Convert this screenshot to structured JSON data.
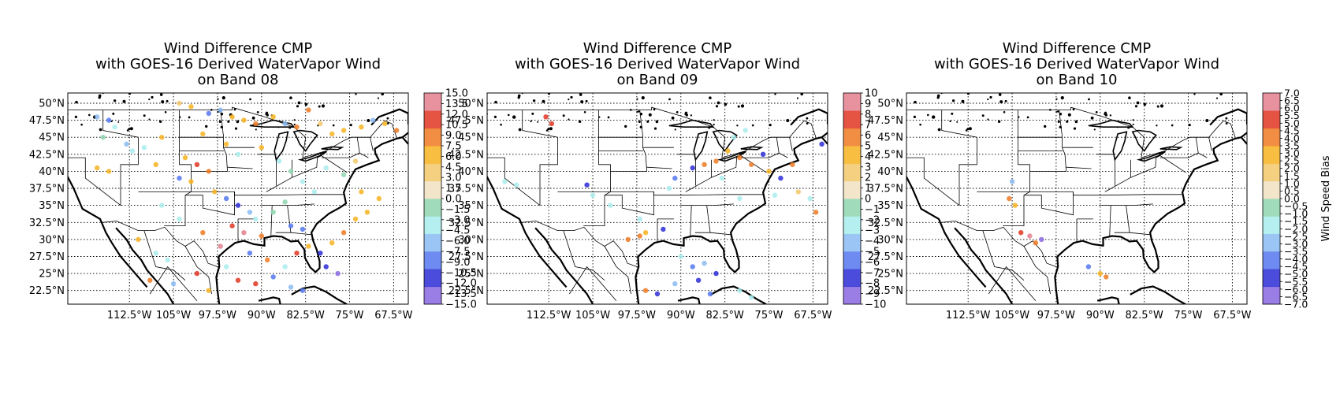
{
  "panels": [
    {
      "title_lines": [
        "Wind Difference CMP",
        "with GOES-16 Derived WaterVapor Wind",
        "on Band 08"
      ],
      "colorbar_ticks": [
        "15.0",
        "13.5",
        "12.0",
        "10.5",
        "9.0",
        "7.5",
        "6.0",
        "4.5",
        "3.0",
        "1.5",
        "0.0",
        "−1.5",
        "−3.0",
        "−4.5",
        "−6.0",
        "−7.5",
        "−9.0",
        "−10.5",
        "−12.0",
        "−13.5",
        "−15.0"
      ],
      "colorbar_range": [
        -15,
        15
      ],
      "colorbar_label": ""
    },
    {
      "title_lines": [
        "Wind Difference CMP",
        "with GOES-16 Derived WaterVapor Wind",
        "on Band 09"
      ],
      "colorbar_ticks": [
        "10",
        "9",
        "8",
        "7",
        "6",
        "5",
        "4",
        "3",
        "2",
        "1",
        "0",
        "−1",
        "−2",
        "−3",
        "−4",
        "−5",
        "−6",
        "−7",
        "−8",
        "−9",
        "−10"
      ],
      "colorbar_range": [
        -10,
        10
      ],
      "colorbar_label": ""
    },
    {
      "title_lines": [
        "Wind Difference CMP",
        "with GOES-16 Derived WaterVapor Wind",
        "on Band 10"
      ],
      "colorbar_ticks": [
        "7.0",
        "6.5",
        "6.0",
        "5.5",
        "5.0",
        "4.5",
        "4.0",
        "3.5",
        "3.0",
        "2.5",
        "2.0",
        "1.5",
        "1.0",
        "0.5",
        "0.0",
        "−0.5",
        "−1.0",
        "−1.5",
        "−2.0",
        "−2.5",
        "−3.0",
        "−3.5",
        "−4.0",
        "−4.5",
        "−5.0",
        "−5.5",
        "−6.0",
        "−6.5",
        "−7.0"
      ],
      "colorbar_range": [
        -7,
        7
      ],
      "colorbar_label": "Wind Speed Bias"
    }
  ],
  "lat_ticks": [
    "50°N",
    "47.5°N",
    "45°N",
    "42.5°N",
    "40°N",
    "37.5°N",
    "35°N",
    "32.5°N",
    "30°N",
    "27.5°N",
    "25°N",
    "22.5°N"
  ],
  "lat_values": [
    50,
    47.5,
    45,
    42.5,
    40,
    37.5,
    35,
    32.5,
    30,
    27.5,
    25,
    22.5
  ],
  "lon_ticks": [
    "112.5°W",
    "105°W",
    "97.5°W",
    "90°W",
    "82.5°W",
    "75°W",
    "67.5°W"
  ],
  "lon_values": [
    -112.5,
    -105,
    -97.5,
    -90,
    -82.5,
    -75,
    -67.5
  ],
  "map_extent": {
    "lon": [
      -123,
      -65
    ],
    "lat": [
      20.5,
      51.5
    ]
  },
  "colormap": [
    "#8866e0",
    "#2c2cd6",
    "#5577ee",
    "#88bbf2",
    "#a8ecec",
    "#8fd6b0",
    "#f0e0c0",
    "#f2c86a",
    "#f7b320",
    "#ee7a22",
    "#e03622",
    "#e57f8e"
  ],
  "chart_data": [
    {
      "type": "scatter",
      "title": "Wind Difference CMP with GOES-16 Derived WaterVapor Wind on Band 08",
      "xlabel": "",
      "ylabel": "",
      "xlim": [
        -123,
        -65
      ],
      "ylim": [
        20.5,
        51.5
      ],
      "color_range": [
        -15,
        15
      ],
      "points": [
        [
          -118,
          48,
          -7
        ],
        [
          -116,
          47.5,
          -9
        ],
        [
          -115,
          46.5,
          -4
        ],
        [
          -117,
          45,
          -2
        ],
        [
          -113,
          44,
          -6
        ],
        [
          -112,
          43,
          -3
        ],
        [
          -118,
          40.5,
          5
        ],
        [
          -116,
          40,
          6
        ],
        [
          -104,
          50,
          4
        ],
        [
          -102,
          49.5,
          6
        ],
        [
          -99,
          48.5,
          -8
        ],
        [
          -97,
          49,
          -6
        ],
        [
          -95,
          48,
          5
        ],
        [
          -93,
          47.5,
          7
        ],
        [
          -91,
          47,
          8
        ],
        [
          -88,
          48,
          6
        ],
        [
          -86,
          47,
          -7
        ],
        [
          -84,
          46.5,
          9
        ],
        [
          -82,
          49,
          8
        ],
        [
          -80,
          47,
          4
        ],
        [
          -78,
          45.5,
          7
        ],
        [
          -76,
          46,
          6
        ],
        [
          -73,
          46.5,
          5
        ],
        [
          -71,
          47.5,
          -6
        ],
        [
          -69,
          47,
          7
        ],
        [
          -67,
          46,
          9
        ],
        [
          -103,
          42,
          6
        ],
        [
          -101,
          41,
          12
        ],
        [
          -99,
          40,
          8
        ],
        [
          -102,
          38.5,
          7
        ],
        [
          -98,
          37,
          5
        ],
        [
          -96,
          36,
          -9
        ],
        [
          -94,
          35,
          -12
        ],
        [
          -92,
          34,
          -6
        ],
        [
          -95,
          32,
          11
        ],
        [
          -93,
          31,
          13
        ],
        [
          -90,
          30.5,
          8
        ],
        [
          -91,
          33,
          -3
        ],
        [
          -88,
          34,
          -2
        ],
        [
          -86,
          35.5,
          -2
        ],
        [
          -85,
          32,
          -8
        ],
        [
          -83,
          31.5,
          -10
        ],
        [
          -82,
          29,
          6
        ],
        [
          -80,
          28,
          -11
        ],
        [
          -79,
          26,
          -12
        ],
        [
          -77,
          25,
          -13
        ],
        [
          -78,
          29.5,
          7
        ],
        [
          -76,
          31,
          8
        ],
        [
          -74,
          33,
          5
        ],
        [
          -72,
          34,
          6
        ],
        [
          -70,
          36,
          5
        ],
        [
          -73,
          37,
          7
        ],
        [
          -111,
          30,
          6
        ],
        [
          -108,
          28,
          -5
        ],
        [
          -106,
          27,
          -3
        ],
        [
          -109,
          24,
          8
        ],
        [
          -105,
          23.5,
          -7
        ],
        [
          -101,
          25,
          11
        ],
        [
          -99,
          22.5,
          6
        ],
        [
          -96,
          26,
          -4
        ],
        [
          -94,
          24,
          10
        ],
        [
          -91,
          23.5,
          12
        ],
        [
          -88,
          24.5,
          -8
        ],
        [
          -85,
          23,
          -6
        ],
        [
          -83,
          22.5,
          -9
        ],
        [
          -89,
          27,
          9
        ],
        [
          -86,
          26,
          -3
        ],
        [
          -84,
          28,
          11
        ],
        [
          -92,
          28,
          -9
        ],
        [
          -97,
          29,
          13
        ],
        [
          -100,
          31,
          9
        ],
        [
          -104,
          33,
          -4
        ],
        [
          -107,
          35,
          -5
        ],
        [
          -104,
          39,
          -8
        ],
        [
          -108,
          41,
          5
        ],
        [
          -110,
          43.5,
          -4
        ],
        [
          -107,
          45,
          6
        ],
        [
          -100,
          45.5,
          7
        ],
        [
          -96,
          44,
          5
        ],
        [
          -94,
          42.5,
          -3
        ],
        [
          -90,
          43.5,
          6
        ],
        [
          -87,
          41.5,
          -3
        ],
        [
          -85,
          40,
          -2
        ],
        [
          -83,
          38.5,
          -3
        ],
        [
          -81,
          37,
          -4
        ],
        [
          -79,
          40.5,
          -3
        ],
        [
          -76,
          39.5,
          -2
        ],
        [
          -74,
          41.5,
          4
        ]
      ]
    },
    {
      "type": "scatter",
      "title": "Wind Difference CMP with GOES-16 Derived WaterVapor Wind on Band 09",
      "xlabel": "",
      "ylabel": "",
      "xlim": [
        -123,
        -65
      ],
      "ylim": [
        20.5,
        51.5
      ],
      "color_range": [
        -10,
        10
      ],
      "points": [
        [
          -113,
          48,
          8
        ],
        [
          -112,
          47,
          7
        ],
        [
          -120,
          38.5,
          -2
        ],
        [
          -118,
          38,
          -2
        ],
        [
          -106,
          38,
          -8
        ],
        [
          -105,
          36.5,
          -3
        ],
        [
          -102,
          35,
          -2
        ],
        [
          -97,
          33,
          -3
        ],
        [
          -99,
          30,
          5
        ],
        [
          -97,
          30.5,
          6
        ],
        [
          -96,
          31,
          4
        ],
        [
          -93,
          31.5,
          -8
        ],
        [
          -92,
          37.5,
          -3
        ],
        [
          -91,
          39,
          -6
        ],
        [
          -88,
          40.5,
          -8
        ],
        [
          -86,
          41,
          5
        ],
        [
          -84,
          41.5,
          6
        ],
        [
          -82,
          43,
          4
        ],
        [
          -80,
          42,
          5
        ],
        [
          -78,
          41,
          6
        ],
        [
          -76,
          42.5,
          -7
        ],
        [
          -75,
          40,
          4
        ],
        [
          -73,
          39,
          -8
        ],
        [
          -71,
          41,
          6
        ],
        [
          -74,
          36.5,
          -2
        ],
        [
          -70,
          37,
          3
        ],
        [
          -68,
          36,
          -2
        ],
        [
          -67,
          34,
          5
        ],
        [
          -81,
          45,
          -2
        ],
        [
          -79,
          46,
          -3
        ],
        [
          -66,
          44,
          -7
        ],
        [
          -90,
          27.5,
          -3
        ],
        [
          -88,
          26,
          -6
        ],
        [
          -86,
          26.5,
          -5
        ],
        [
          -84,
          25,
          -8
        ],
        [
          -87,
          24,
          -7
        ],
        [
          -91,
          23.5,
          -4
        ],
        [
          -94,
          22,
          -8
        ],
        [
          -96,
          22.5,
          6
        ],
        [
          -85,
          22,
          -6
        ],
        [
          -80,
          22.5,
          -3
        ],
        [
          -78,
          21.5,
          -2
        ],
        [
          -80,
          36,
          -2
        ],
        [
          -83,
          39,
          -3
        ]
      ]
    },
    {
      "type": "scatter",
      "title": "Wind Difference CMP with GOES-16 Derived WaterVapor Wind on Band 10",
      "xlabel": "",
      "ylabel": "Wind Speed Bias",
      "xlim": [
        -123,
        -65
      ],
      "ylim": [
        20.5,
        51.5
      ],
      "color_range": [
        -7,
        7
      ],
      "points": [
        [
          -105,
          38.5,
          -3
        ],
        [
          -105.5,
          36,
          4
        ],
        [
          -104.5,
          35,
          3
        ],
        [
          -103.5,
          31,
          5
        ],
        [
          -102,
          30.5,
          6
        ],
        [
          -101,
          29.5,
          4
        ],
        [
          -100,
          30,
          -6
        ],
        [
          -92,
          26,
          -4
        ],
        [
          -90,
          25,
          3
        ],
        [
          -89,
          24.5,
          4
        ]
      ]
    }
  ]
}
